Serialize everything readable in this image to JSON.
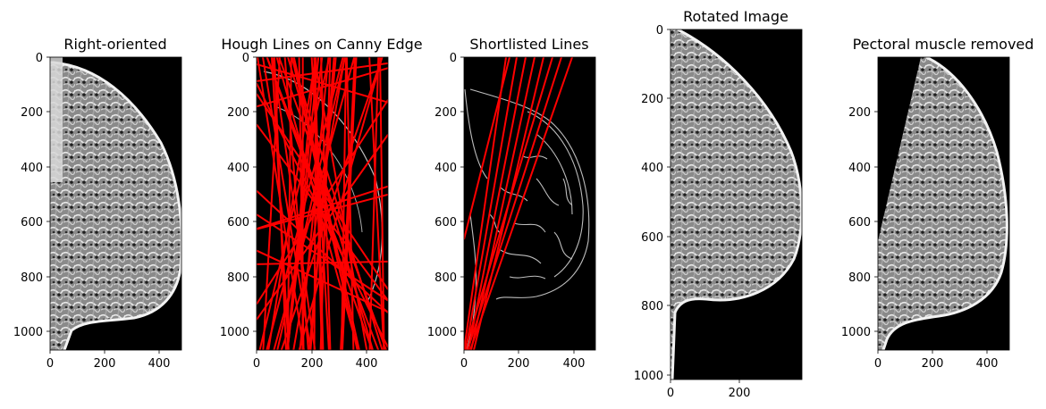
{
  "panels": [
    {
      "id": "p1",
      "title": "Right-oriented",
      "image": "mammogram-right-oriented",
      "xticks": [
        "0",
        "200",
        "400"
      ],
      "yticks": [
        "0",
        "200",
        "400",
        "600",
        "800",
        "1000"
      ]
    },
    {
      "id": "p2",
      "title": "Hough Lines on Canny Edge",
      "image": "canny-edges-with-hough-lines",
      "xticks": [
        "0",
        "200",
        "400"
      ],
      "yticks": [
        "0",
        "200",
        "400",
        "600",
        "800",
        "1000"
      ]
    },
    {
      "id": "p3",
      "title": "Shortlisted Lines",
      "image": "canny-edges-with-shortlisted-lines",
      "xticks": [
        "0",
        "200",
        "400"
      ],
      "yticks": [
        "0",
        "200",
        "400",
        "600",
        "800",
        "1000"
      ]
    },
    {
      "id": "p4",
      "title": "Rotated Image",
      "image": "mammogram-rotated",
      "xticks": [
        "0",
        "200"
      ],
      "yticks": [
        "0",
        "200",
        "400",
        "600",
        "800",
        "1000"
      ]
    },
    {
      "id": "p5",
      "title": "Pectoral muscle removed",
      "image": "mammogram-pectoral-removed",
      "xticks": [
        "0",
        "200",
        "400"
      ],
      "yticks": [
        "200",
        "400",
        "600",
        "800",
        "1000"
      ]
    }
  ],
  "colors": {
    "background": "#ffffff",
    "image_background": "#000000",
    "tissue": "#e6e6e6",
    "edges": "#bdbdbd",
    "lines": "#ff0000"
  }
}
